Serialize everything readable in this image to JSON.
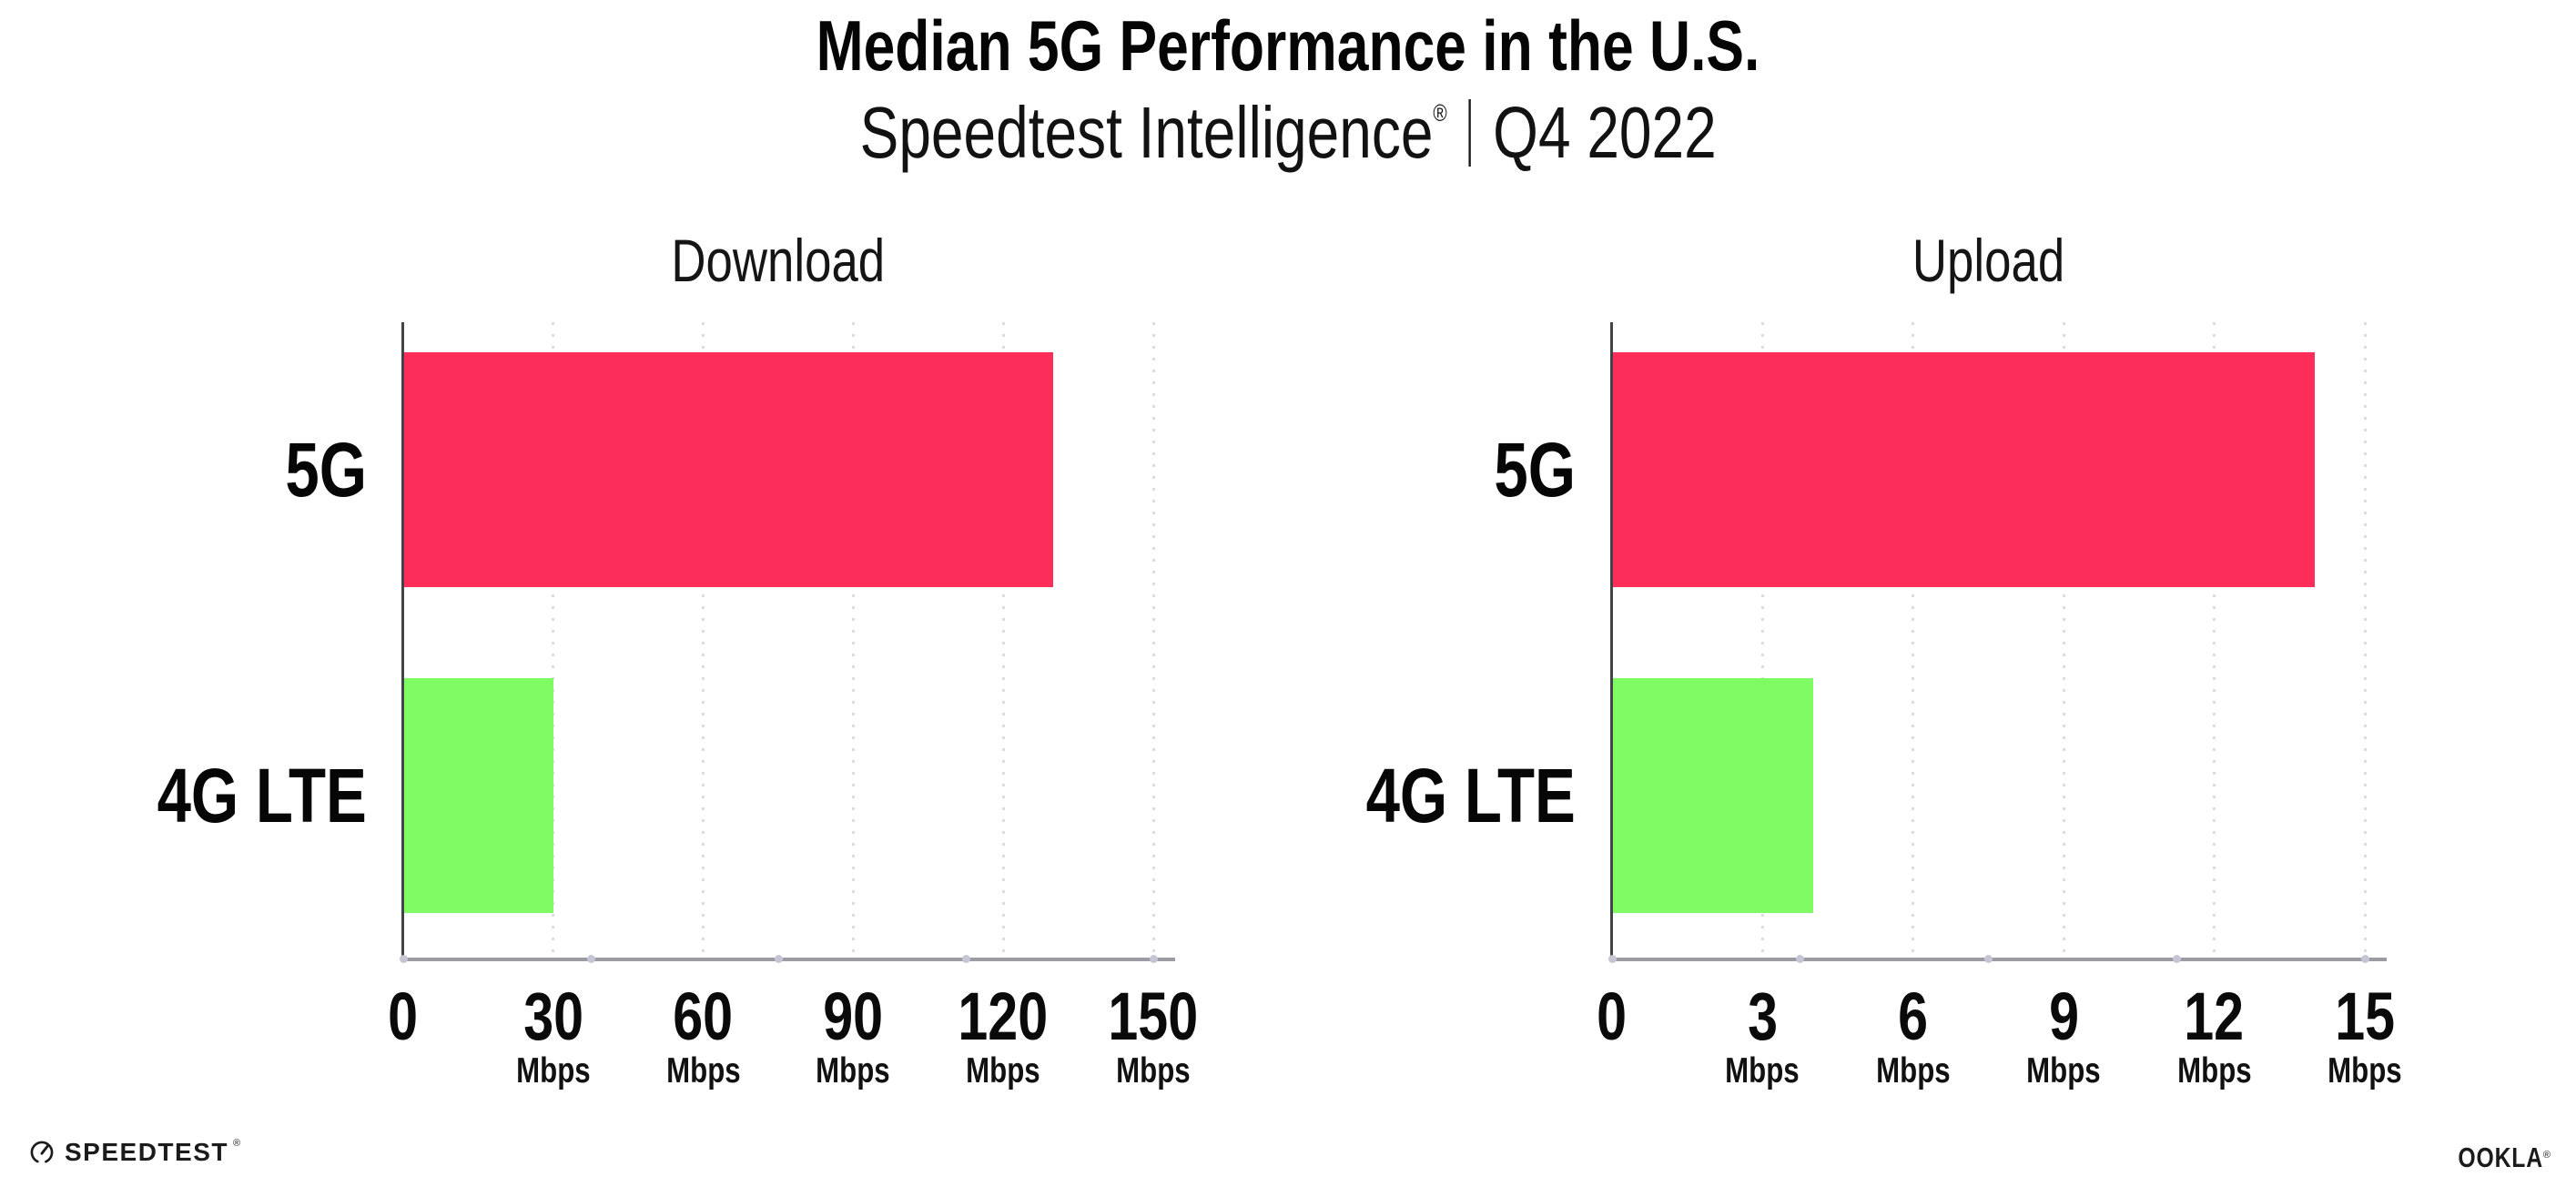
{
  "header": {
    "title": "Median 5G Performance in the U.S.",
    "subtitle_brand": "Speedtest Intelligence",
    "subtitle_reg": "®",
    "subtitle_period": "Q4 2022"
  },
  "colors": {
    "bar_5g": "#FD2D5A",
    "bar_4g_lte": "#80FB63",
    "gridline": "#DCDCE9",
    "axis_y": "#43434A",
    "axis_x": "#9B9BA4",
    "tick_dot": "#C5C5D4",
    "text": "#0B0B0C"
  },
  "chart_data": [
    {
      "type": "bar",
      "orientation": "horizontal",
      "title": "Download",
      "categories": [
        "5G",
        "4G LTE"
      ],
      "values": [
        130,
        30
      ],
      "unit": "Mbps",
      "xlim": [
        0,
        150
      ],
      "xticks": [
        0,
        30,
        60,
        90,
        120,
        150
      ],
      "tick_unit_label": "Mbps",
      "grid": "dotted-vertical",
      "legend": "none",
      "bar_colors": [
        "#FD2D5A",
        "#80FB63"
      ]
    },
    {
      "type": "bar",
      "orientation": "horizontal",
      "title": "Upload",
      "categories": [
        "5G",
        "4G LTE"
      ],
      "values": [
        14,
        4
      ],
      "unit": "Mbps",
      "xlim": [
        0,
        15
      ],
      "xticks": [
        0,
        3,
        6,
        9,
        12,
        15
      ],
      "tick_unit_label": "Mbps",
      "grid": "dotted-vertical",
      "legend": "none",
      "bar_colors": [
        "#FD2D5A",
        "#80FB63"
      ]
    }
  ],
  "footer": {
    "speedtest_icon": "gauge-icon",
    "speedtest_label": "SPEEDTEST",
    "speedtest_reg": "®",
    "ookla_label": "OOKLA",
    "ookla_reg": "®"
  }
}
